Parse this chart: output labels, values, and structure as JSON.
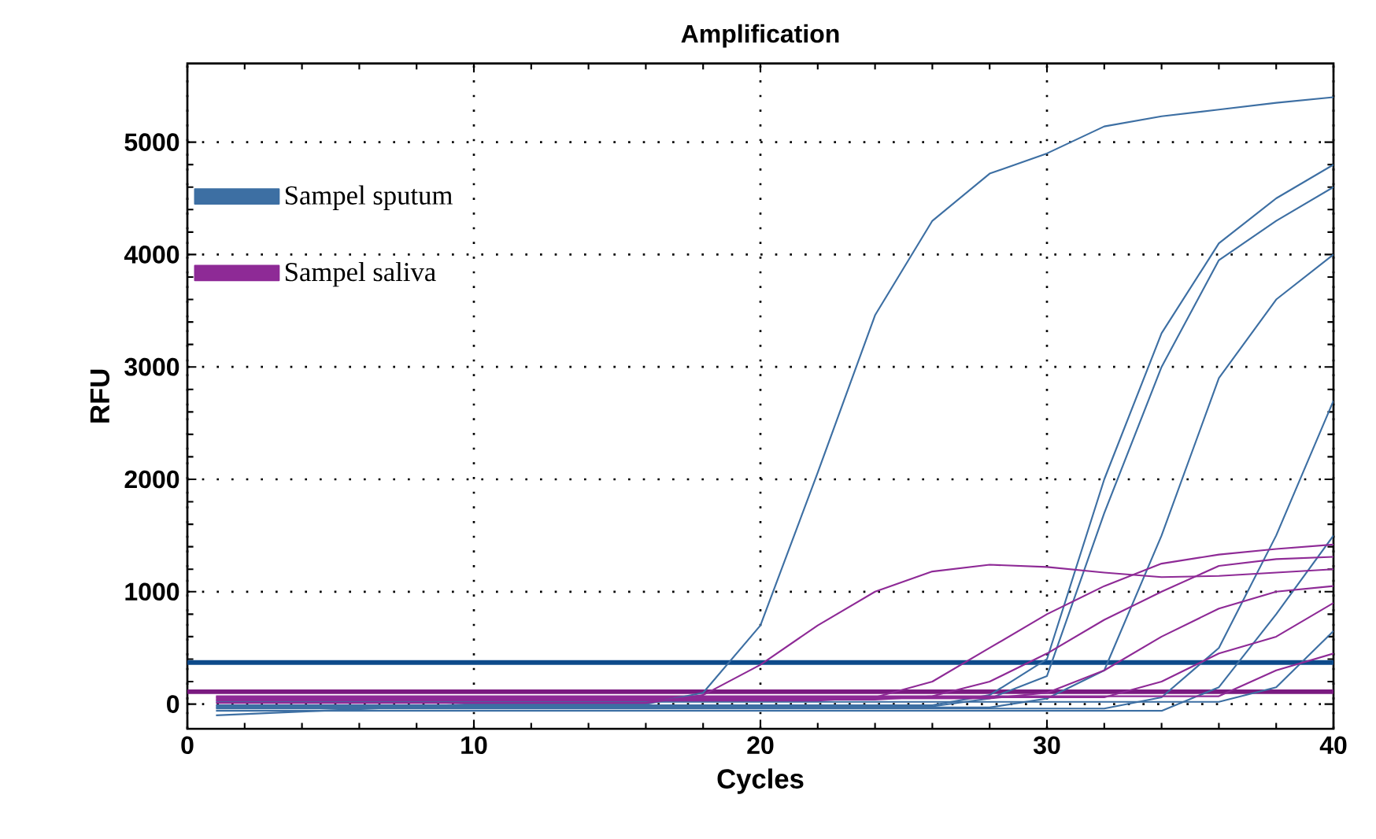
{
  "chart_data": {
    "type": "line",
    "title": "Amplification",
    "xlabel": "Cycles",
    "ylabel": "RFU",
    "x": [
      1,
      10,
      16,
      18,
      20,
      22,
      24,
      26,
      28,
      30,
      32,
      34,
      36,
      38,
      40
    ],
    "xlim": [
      0,
      40
    ],
    "xticks": [
      0,
      10,
      20,
      30,
      40
    ],
    "ylim": [
      -220,
      5700
    ],
    "yticks": [
      0,
      1000,
      2000,
      3000,
      4000,
      5000
    ],
    "grid": true,
    "legend": "top left",
    "ref_lines": [
      {
        "axis": "y",
        "value": 370,
        "color": "#0d4a8a"
      },
      {
        "axis": "y",
        "value": 110,
        "color": "#7a1a80"
      }
    ],
    "series": [
      {
        "name": "Sampel sputum",
        "color": "#3d6fa3",
        "values": [
          -100,
          0,
          0,
          100,
          700,
          2060,
          3460,
          4300,
          4720,
          4900,
          5140,
          5230,
          5290,
          5350,
          5400
        ]
      },
      {
        "name": "Sampel saliva",
        "color": "#8e2a96",
        "values": [
          10,
          10,
          10,
          80,
          350,
          700,
          1000,
          1180,
          1240,
          1220,
          1170,
          1130,
          1140,
          1170,
          1200
        ]
      },
      {
        "color": "#3d6fa3",
        "values": [
          -10,
          -10,
          -10,
          -10,
          -10,
          -10,
          -10,
          -10,
          80,
          400,
          2000,
          3300,
          4100,
          4500,
          4800
        ]
      },
      {
        "color": "#3d6fa3",
        "values": [
          -20,
          -20,
          -20,
          -20,
          -20,
          -20,
          -20,
          -20,
          50,
          250,
          1700,
          3000,
          3950,
          4300,
          4600
        ]
      },
      {
        "color": "#3d6fa3",
        "values": [
          -30,
          -30,
          -30,
          -30,
          -30,
          -30,
          -30,
          -30,
          -30,
          50,
          300,
          1500,
          2900,
          3600,
          4000
        ]
      },
      {
        "color": "#3d6fa3",
        "values": [
          -40,
          -40,
          -40,
          -40,
          -40,
          -40,
          -40,
          -40,
          -40,
          -40,
          -40,
          60,
          500,
          1500,
          2700
        ]
      },
      {
        "color": "#3d6fa3",
        "values": [
          -60,
          -60,
          -60,
          -60,
          -60,
          -60,
          -60,
          -60,
          -60,
          -60,
          -60,
          -60,
          150,
          800,
          1500
        ]
      },
      {
        "color": "#3d6fa3",
        "values": [
          20,
          20,
          20,
          20,
          20,
          20,
          20,
          20,
          20,
          20,
          20,
          20,
          20,
          150,
          650
        ]
      },
      {
        "color": "#8e2a96",
        "values": [
          30,
          30,
          30,
          30,
          30,
          30,
          60,
          200,
          500,
          800,
          1050,
          1250,
          1330,
          1380,
          1420
        ]
      },
      {
        "color": "#8e2a96",
        "values": [
          40,
          40,
          40,
          40,
          40,
          40,
          40,
          70,
          200,
          450,
          750,
          1000,
          1230,
          1290,
          1310
        ]
      },
      {
        "color": "#8e2a96",
        "values": [
          50,
          50,
          50,
          50,
          50,
          50,
          50,
          50,
          50,
          100,
          300,
          600,
          850,
          1000,
          1050
        ]
      },
      {
        "color": "#8e2a96",
        "values": [
          60,
          60,
          60,
          60,
          60,
          60,
          60,
          60,
          60,
          60,
          60,
          200,
          450,
          600,
          900
        ]
      },
      {
        "color": "#8e2a96",
        "values": [
          70,
          70,
          70,
          70,
          70,
          70,
          70,
          70,
          70,
          70,
          70,
          70,
          70,
          300,
          450
        ]
      }
    ]
  }
}
